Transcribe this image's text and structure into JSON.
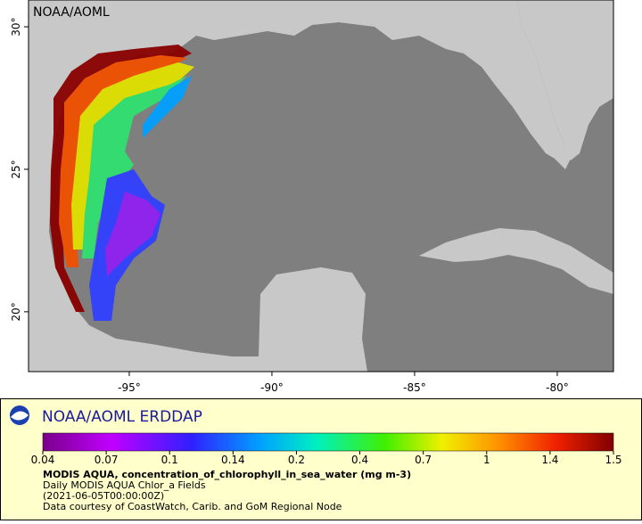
{
  "map": {
    "label": "NOAA/AOML",
    "xlim": [
      -98.53,
      -78.03
    ],
    "ylim": [
      17.9,
      30.94
    ],
    "xticks": [
      {
        "value": -95,
        "label": "-95°"
      },
      {
        "value": -90,
        "label": "-90°"
      },
      {
        "value": -85,
        "label": "-85°"
      },
      {
        "value": -80,
        "label": "-80°"
      }
    ],
    "yticks": [
      {
        "value": 20,
        "label": "20°"
      },
      {
        "value": 25,
        "label": "25°"
      },
      {
        "value": 30,
        "label": "30°"
      }
    ]
  },
  "legend": {
    "title": "NOAA/AOML ERDDAP",
    "colorbar": {
      "ticks": [
        0.04,
        0.07,
        0.1,
        0.14,
        0.2,
        0.4,
        0.7,
        1,
        1.4,
        1.5
      ]
    },
    "variable": "MODIS AQUA, concentration_of_chlorophyll_in_sea_water (mg m-3)",
    "dataset": "Daily MODIS AQUA Chlor_a Fields",
    "time": "(2021-06-05T00:00:00Z)",
    "credit": "Data courtesy of CoastWatch, Carib. and GoM Regional Node"
  }
}
